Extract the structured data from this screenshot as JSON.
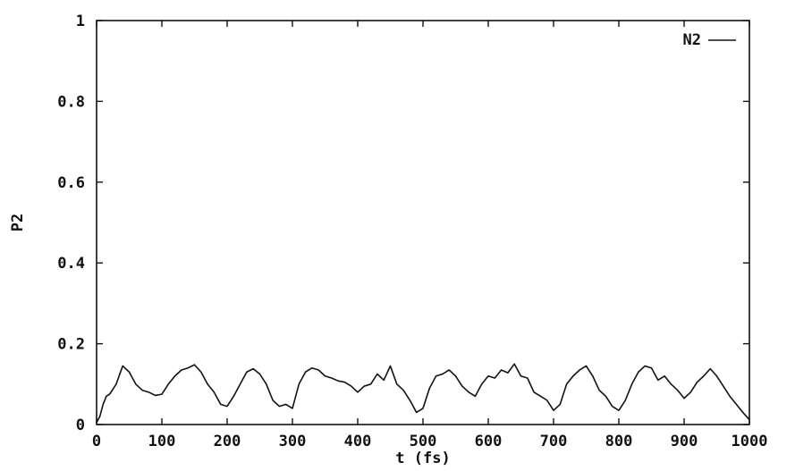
{
  "chart_data": {
    "type": "line",
    "title": "",
    "xlabel": "t (fs)",
    "ylabel": "P2",
    "xlim": [
      0,
      1000
    ],
    "ylim": [
      0,
      1
    ],
    "x_ticks": [
      0,
      100,
      200,
      300,
      400,
      500,
      600,
      700,
      800,
      900,
      1000
    ],
    "x_tick_labels": [
      "0",
      "100",
      "200",
      "300",
      "400",
      "500",
      "600",
      "700",
      "800",
      "900",
      "1000"
    ],
    "y_ticks": [
      0,
      0.2,
      0.4,
      0.6,
      0.8,
      1
    ],
    "y_tick_labels": [
      "0",
      "0.2",
      "0.4",
      "0.6",
      "0.8",
      "1"
    ],
    "grid": false,
    "legend_position": "top-right",
    "series": [
      {
        "name": "N2",
        "color": "#111111",
        "x": [
          0,
          5,
          10,
          15,
          20,
          30,
          40,
          50,
          60,
          70,
          80,
          90,
          100,
          110,
          120,
          130,
          140,
          150,
          160,
          170,
          180,
          190,
          200,
          210,
          220,
          230,
          240,
          250,
          260,
          270,
          280,
          290,
          300,
          310,
          320,
          330,
          340,
          350,
          360,
          370,
          380,
          390,
          400,
          410,
          420,
          430,
          440,
          450,
          460,
          470,
          480,
          490,
          500,
          510,
          520,
          530,
          540,
          550,
          560,
          570,
          580,
          590,
          600,
          610,
          620,
          630,
          640,
          650,
          660,
          670,
          680,
          690,
          700,
          710,
          720,
          730,
          740,
          750,
          760,
          770,
          780,
          790,
          800,
          810,
          820,
          830,
          840,
          850,
          860,
          870,
          880,
          890,
          900,
          910,
          920,
          930,
          940,
          950,
          960,
          970,
          980,
          990,
          1000
        ],
        "y": [
          0.005,
          0.02,
          0.05,
          0.07,
          0.075,
          0.1,
          0.145,
          0.13,
          0.1,
          0.085,
          0.08,
          0.072,
          0.075,
          0.1,
          0.12,
          0.135,
          0.14,
          0.148,
          0.13,
          0.1,
          0.08,
          0.05,
          0.045,
          0.07,
          0.1,
          0.13,
          0.138,
          0.125,
          0.1,
          0.06,
          0.045,
          0.05,
          0.04,
          0.1,
          0.13,
          0.14,
          0.135,
          0.12,
          0.115,
          0.108,
          0.105,
          0.095,
          0.08,
          0.095,
          0.1,
          0.125,
          0.11,
          0.145,
          0.1,
          0.085,
          0.06,
          0.03,
          0.04,
          0.09,
          0.12,
          0.125,
          0.135,
          0.12,
          0.095,
          0.08,
          0.07,
          0.1,
          0.12,
          0.115,
          0.135,
          0.128,
          0.15,
          0.12,
          0.115,
          0.08,
          0.07,
          0.06,
          0.035,
          0.05,
          0.1,
          0.12,
          0.135,
          0.145,
          0.12,
          0.085,
          0.07,
          0.045,
          0.035,
          0.06,
          0.1,
          0.13,
          0.145,
          0.14,
          0.11,
          0.12,
          0.1,
          0.085,
          0.065,
          0.08,
          0.105,
          0.12,
          0.138,
          0.12,
          0.095,
          0.07,
          0.05,
          0.03,
          0.012
        ]
      }
    ]
  }
}
